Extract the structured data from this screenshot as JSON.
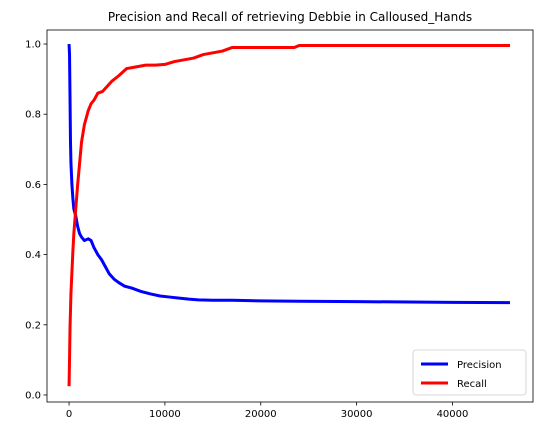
{
  "chart_data": {
    "type": "line",
    "title": "Precision and Recall of retrieving Debbie in Calloused_Hands",
    "xlabel": "",
    "ylabel": "",
    "xlim": [
      -2300,
      48400
    ],
    "ylim": [
      -0.02,
      1.04
    ],
    "xticks": [
      0,
      10000,
      20000,
      30000,
      40000
    ],
    "xtick_labels": [
      "0",
      "10000",
      "20000",
      "30000",
      "40000"
    ],
    "yticks": [
      0.0,
      0.2,
      0.4,
      0.6,
      0.8,
      1.0
    ],
    "ytick_labels": [
      "0.0",
      "0.2",
      "0.4",
      "0.6",
      "0.8",
      "1.0"
    ],
    "grid": false,
    "legend_position": "lower-right",
    "series": [
      {
        "name": "Precision",
        "color": "#0000ff",
        "x": [
          0,
          50,
          100,
          150,
          200,
          300,
          400,
          500,
          700,
          900,
          1100,
          1300,
          1600,
          2000,
          2300,
          2600,
          3000,
          3400,
          3800,
          4200,
          4700,
          5200,
          5800,
          6500,
          7500,
          8500,
          9500,
          10500,
          11500,
          12500,
          13500,
          15000,
          17000,
          20000,
          24000,
          30000,
          40000,
          46000
        ],
        "values": [
          1.0,
          0.97,
          0.85,
          0.72,
          0.66,
          0.6,
          0.56,
          0.53,
          0.51,
          0.48,
          0.46,
          0.45,
          0.44,
          0.445,
          0.44,
          0.42,
          0.4,
          0.385,
          0.365,
          0.345,
          0.33,
          0.32,
          0.31,
          0.305,
          0.295,
          0.288,
          0.282,
          0.279,
          0.276,
          0.273,
          0.271,
          0.27,
          0.27,
          0.268,
          0.267,
          0.266,
          0.264,
          0.263
        ]
      },
      {
        "name": "Recall",
        "color": "#ff0000",
        "x": [
          0,
          50,
          100,
          150,
          200,
          300,
          400,
          500,
          700,
          900,
          1100,
          1300,
          1600,
          2000,
          2300,
          2600,
          3000,
          3500,
          4000,
          4500,
          5200,
          6000,
          7000,
          8000,
          9000,
          10000,
          11000,
          12000,
          13000,
          14000,
          15000,
          16000,
          17000,
          18000,
          20000,
          23500,
          24000,
          30000,
          40000,
          46000
        ],
        "values": [
          0.025,
          0.1,
          0.19,
          0.24,
          0.29,
          0.35,
          0.41,
          0.46,
          0.53,
          0.6,
          0.66,
          0.72,
          0.77,
          0.81,
          0.83,
          0.84,
          0.86,
          0.865,
          0.88,
          0.895,
          0.91,
          0.93,
          0.935,
          0.94,
          0.94,
          0.942,
          0.95,
          0.955,
          0.96,
          0.97,
          0.975,
          0.98,
          0.99,
          0.99,
          0.99,
          0.99,
          0.996,
          0.996,
          0.996,
          0.996
        ]
      }
    ]
  }
}
